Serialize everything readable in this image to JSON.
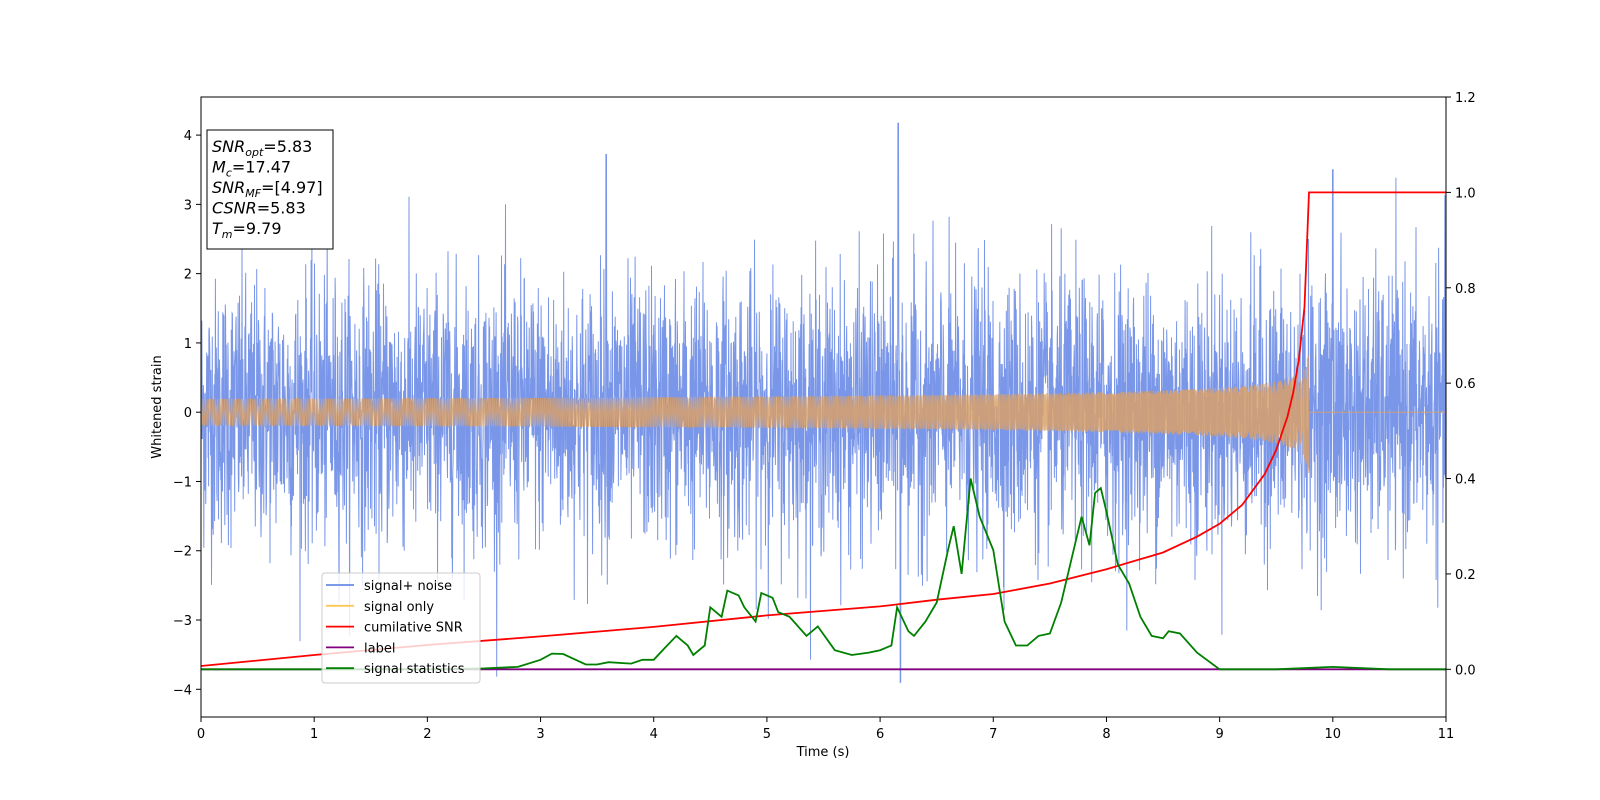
{
  "chart_data": {
    "type": "line",
    "xlabel": "Time (s)",
    "ylabel_left": "Whitened strain",
    "ylabel_right": "",
    "xlim": [
      0,
      11
    ],
    "ylim_left": [
      -4.4,
      4.55
    ],
    "ylim_right": [
      -0.1,
      1.2
    ],
    "x_ticks": [
      0,
      1,
      2,
      3,
      4,
      5,
      6,
      7,
      8,
      9,
      10,
      11
    ],
    "x_tick_labels": [
      "0",
      "1",
      "2",
      "3",
      "4",
      "5",
      "6",
      "7",
      "8",
      "9",
      "10",
      "11"
    ],
    "y_left_ticks": [
      -4,
      -3,
      -2,
      -1,
      0,
      1,
      2,
      3,
      4
    ],
    "y_left_tick_labels": [
      "−4",
      "−3",
      "−2",
      "−1",
      "0",
      "1",
      "2",
      "3",
      "4"
    ],
    "y_right_ticks": [
      0.0,
      0.2,
      0.4,
      0.6,
      0.8,
      1.0,
      1.2
    ],
    "y_right_tick_labels": [
      "0.0",
      "0.2",
      "0.4",
      "0.6",
      "0.8",
      "1.0",
      "1.2"
    ],
    "grid": false,
    "legend_position": "lower-left",
    "info_box": {
      "lines": [
        {
          "var": "SNR",
          "sub": "opt",
          "value": "=5.83"
        },
        {
          "var": "M",
          "sub": "c",
          "value": "=17.47"
        },
        {
          "var": "SNR",
          "sub": "MF",
          "value": "=[4.97]"
        },
        {
          "var": "CSNR",
          "sub": "",
          "value": "=5.83"
        },
        {
          "var": "T",
          "sub": "m",
          "value": "=9.79"
        }
      ]
    },
    "merger_time": 9.79,
    "series": [
      {
        "name": "signal+ noise",
        "axis": "left",
        "color": "#6a8be6",
        "kind": "noise",
        "noise_sigma": 1.0,
        "description_values": "dense whitened strain, roughly within ±2 with spikes up to 4.2 near t=6.16"
      },
      {
        "name": "signal only",
        "axis": "left",
        "color": "#ffa500",
        "kind": "chirp",
        "end_amplitude": 0.9
      },
      {
        "name": "cumilative SNR",
        "axis": "right",
        "color": "#ff0000",
        "points": [
          [
            0,
            0.007
          ],
          [
            1,
            0.03
          ],
          [
            2,
            0.051
          ],
          [
            3,
            0.069
          ],
          [
            4,
            0.089
          ],
          [
            5,
            0.113
          ],
          [
            6,
            0.132
          ],
          [
            6.5,
            0.146
          ],
          [
            7,
            0.158
          ],
          [
            7.5,
            0.18
          ],
          [
            8,
            0.21
          ],
          [
            8.5,
            0.245
          ],
          [
            8.8,
            0.278
          ],
          [
            9.0,
            0.305
          ],
          [
            9.2,
            0.345
          ],
          [
            9.4,
            0.41
          ],
          [
            9.5,
            0.46
          ],
          [
            9.6,
            0.53
          ],
          [
            9.65,
            0.58
          ],
          [
            9.7,
            0.65
          ],
          [
            9.75,
            0.76
          ],
          [
            9.79,
            1.0
          ],
          [
            11,
            1.0
          ]
        ]
      },
      {
        "name": "label",
        "axis": "right",
        "color": "#800080",
        "points": [
          [
            0,
            0.0
          ],
          [
            11,
            0.0
          ]
        ]
      },
      {
        "name": "signal statistics",
        "axis": "right",
        "color": "#008000",
        "points": [
          [
            0,
            0.0
          ],
          [
            0.5,
            0.0
          ],
          [
            1.0,
            0.0
          ],
          [
            1.5,
            0.0
          ],
          [
            2.0,
            0.0
          ],
          [
            2.5,
            0.002
          ],
          [
            2.8,
            0.005
          ],
          [
            3.0,
            0.02
          ],
          [
            3.1,
            0.033
          ],
          [
            3.2,
            0.032
          ],
          [
            3.4,
            0.01
          ],
          [
            3.5,
            0.01
          ],
          [
            3.6,
            0.015
          ],
          [
            3.8,
            0.012
          ],
          [
            3.9,
            0.02
          ],
          [
            4.0,
            0.02
          ],
          [
            4.1,
            0.045
          ],
          [
            4.2,
            0.07
          ],
          [
            4.3,
            0.05
          ],
          [
            4.35,
            0.03
          ],
          [
            4.45,
            0.05
          ],
          [
            4.5,
            0.13
          ],
          [
            4.6,
            0.11
          ],
          [
            4.65,
            0.165
          ],
          [
            4.75,
            0.155
          ],
          [
            4.8,
            0.13
          ],
          [
            4.9,
            0.1
          ],
          [
            4.95,
            0.16
          ],
          [
            5.05,
            0.15
          ],
          [
            5.1,
            0.12
          ],
          [
            5.2,
            0.11
          ],
          [
            5.35,
            0.07
          ],
          [
            5.45,
            0.09
          ],
          [
            5.6,
            0.04
          ],
          [
            5.75,
            0.03
          ],
          [
            5.9,
            0.035
          ],
          [
            6.0,
            0.04
          ],
          [
            6.1,
            0.05
          ],
          [
            6.15,
            0.13
          ],
          [
            6.25,
            0.08
          ],
          [
            6.3,
            0.07
          ],
          [
            6.4,
            0.1
          ],
          [
            6.5,
            0.14
          ],
          [
            6.6,
            0.25
          ],
          [
            6.65,
            0.3
          ],
          [
            6.72,
            0.2
          ],
          [
            6.8,
            0.4
          ],
          [
            6.88,
            0.32
          ],
          [
            7.0,
            0.25
          ],
          [
            7.1,
            0.1
          ],
          [
            7.2,
            0.05
          ],
          [
            7.3,
            0.05
          ],
          [
            7.4,
            0.07
          ],
          [
            7.5,
            0.075
          ],
          [
            7.6,
            0.14
          ],
          [
            7.7,
            0.24
          ],
          [
            7.78,
            0.32
          ],
          [
            7.85,
            0.26
          ],
          [
            7.9,
            0.37
          ],
          [
            7.95,
            0.38
          ],
          [
            8.0,
            0.33
          ],
          [
            8.1,
            0.22
          ],
          [
            8.2,
            0.18
          ],
          [
            8.3,
            0.11
          ],
          [
            8.4,
            0.07
          ],
          [
            8.5,
            0.065
          ],
          [
            8.55,
            0.08
          ],
          [
            8.65,
            0.075
          ],
          [
            8.8,
            0.035
          ],
          [
            9.0,
            0.0
          ],
          [
            9.5,
            0.0
          ],
          [
            10.0,
            0.005
          ],
          [
            10.5,
            0.0
          ],
          [
            11.0,
            0.0
          ]
        ]
      }
    ],
    "legend": [
      {
        "label": "signal+ noise",
        "color": "#6a8be6"
      },
      {
        "label": "signal only",
        "color": "#ffc75a"
      },
      {
        "label": "cumilative SNR",
        "color": "#ff0000"
      },
      {
        "label": "label",
        "color": "#800080"
      },
      {
        "label": "signal statistics",
        "color": "#008000"
      }
    ]
  }
}
